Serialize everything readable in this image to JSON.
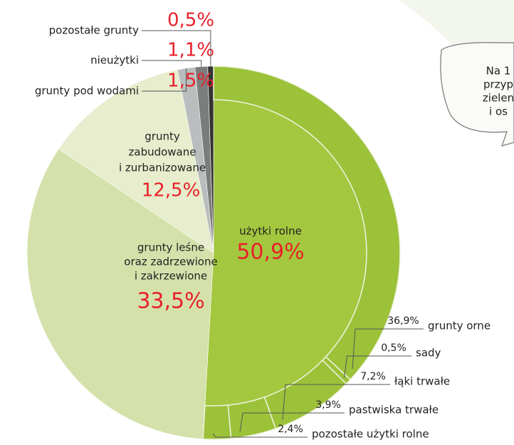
{
  "chart_data": {
    "type": "pie",
    "categories": [
      [
        "użytki rolne"
      ],
      [
        "grunty leśne",
        "oraz zadrzewione",
        "i zakrzewione"
      ],
      [
        "grunty",
        "zabudowane",
        "i zurbanizowane"
      ],
      [
        "grunty pod wodami"
      ],
      [
        "nieużytki"
      ],
      [
        "pozostałe grunty"
      ]
    ],
    "values": [
      50.9,
      33.5,
      12.5,
      1.5,
      1.1,
      0.5
    ],
    "value_labels": [
      "50,9%",
      "33,5%",
      "12,5%",
      "1,5%",
      "1,1%",
      "0,5%"
    ],
    "colors": [
      "#a3c73e",
      "#d5e1ab",
      "#e7edcd",
      "#b9bdbd",
      "#7b7d7d",
      "#333333"
    ],
    "sub": {
      "categories": [
        "grunty orne",
        "sady",
        "łąki trwałe",
        "pastwiska trwałe",
        "pozostałe użytki rolne"
      ],
      "values": [
        36.9,
        0.5,
        7.2,
        3.9,
        2.4
      ],
      "value_labels": [
        "36,9%",
        "0,5%",
        "7,2%",
        "3,9%",
        "2,4%"
      ],
      "color": "#9cc23a"
    }
  },
  "callout": {
    "lines": [
      "Na 1",
      "przyp",
      "zielen",
      "i os"
    ]
  }
}
